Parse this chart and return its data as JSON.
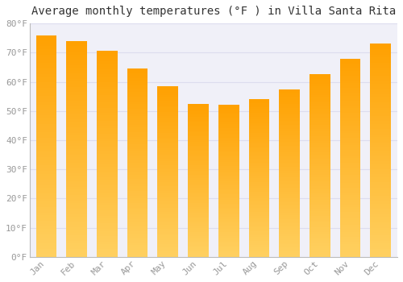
{
  "title": "Average monthly temperatures (°F ) in Villa Santa Rita",
  "months": [
    "Jan",
    "Feb",
    "Mar",
    "Apr",
    "May",
    "Jun",
    "Jul",
    "Aug",
    "Sep",
    "Oct",
    "Nov",
    "Dec"
  ],
  "values": [
    76,
    74,
    70.5,
    64.5,
    58.5,
    52.5,
    52,
    54,
    57.5,
    62.5,
    68,
    73
  ],
  "bar_color_top": "#FFA000",
  "bar_color_bottom": "#FFD060",
  "background_color": "#FFFFFF",
  "plot_bg_color": "#F0F0F8",
  "grid_color": "#DDDDEE",
  "tick_label_color": "#999999",
  "title_color": "#333333",
  "ylim": [
    0,
    80
  ],
  "yticks": [
    0,
    10,
    20,
    30,
    40,
    50,
    60,
    70,
    80
  ],
  "title_fontsize": 10,
  "tick_fontsize": 8
}
